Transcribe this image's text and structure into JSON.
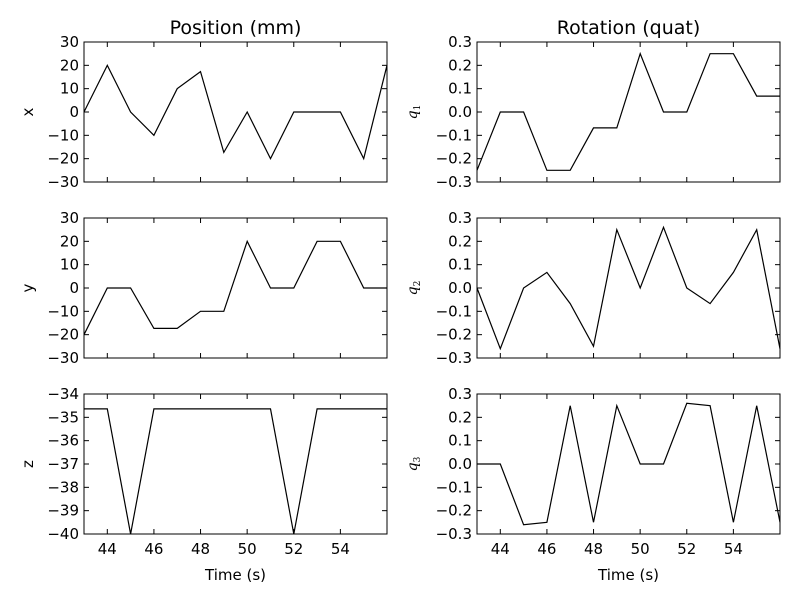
{
  "chart_data": [
    {
      "type": "line",
      "column_title": "Position (mm)",
      "ylabel": "x",
      "xlabel": "",
      "xlim": [
        43,
        56
      ],
      "ylim": [
        -30,
        30
      ],
      "xticks": [
        44,
        46,
        48,
        50,
        52,
        54
      ],
      "yticks": [
        -30,
        -20,
        -10,
        0,
        10,
        20,
        30
      ],
      "x": [
        43,
        44,
        45,
        46,
        47,
        48,
        49,
        50,
        51,
        52,
        53,
        54,
        55,
        56
      ],
      "values": [
        0,
        20,
        0,
        -10,
        10,
        17.3,
        -17.3,
        0,
        -20,
        0,
        0,
        0,
        -20,
        20
      ]
    },
    {
      "type": "line",
      "column_title": "Rotation (quat)",
      "ylabel": "q",
      "ylabel_sub": "1",
      "xlabel": "",
      "xlim": [
        43,
        56
      ],
      "ylim": [
        -0.3,
        0.3
      ],
      "xticks": [
        44,
        46,
        48,
        50,
        52,
        54
      ],
      "yticks": [
        -0.3,
        -0.2,
        -0.1,
        0.0,
        0.1,
        0.2,
        0.3
      ],
      "x": [
        43,
        44,
        45,
        46,
        47,
        48,
        49,
        50,
        51,
        52,
        53,
        54,
        55,
        56
      ],
      "values": [
        -0.25,
        0,
        0,
        -0.25,
        -0.25,
        -0.068,
        -0.068,
        0.25,
        0,
        0,
        0.25,
        0.25,
        0.068,
        0.068
      ]
    },
    {
      "type": "line",
      "column_title": "",
      "ylabel": "y",
      "xlabel": "",
      "xlim": [
        43,
        56
      ],
      "ylim": [
        -30,
        30
      ],
      "xticks": [
        44,
        46,
        48,
        50,
        52,
        54
      ],
      "yticks": [
        -30,
        -20,
        -10,
        0,
        10,
        20,
        30
      ],
      "x": [
        43,
        44,
        45,
        46,
        47,
        48,
        49,
        50,
        51,
        52,
        53,
        54,
        55,
        56
      ],
      "values": [
        -20,
        0,
        0,
        -17.3,
        -17.3,
        -10,
        -10,
        20,
        0,
        0,
        20,
        20,
        0,
        0
      ]
    },
    {
      "type": "line",
      "column_title": "",
      "ylabel": "q",
      "ylabel_sub": "2",
      "xlabel": "",
      "xlim": [
        43,
        56
      ],
      "ylim": [
        -0.3,
        0.3
      ],
      "xticks": [
        44,
        46,
        48,
        50,
        52,
        54
      ],
      "yticks": [
        -0.3,
        -0.2,
        -0.1,
        0.0,
        0.1,
        0.2,
        0.3
      ],
      "x": [
        43,
        44,
        45,
        46,
        47,
        48,
        49,
        50,
        51,
        52,
        53,
        54,
        55,
        56
      ],
      "values": [
        0,
        -0.26,
        0,
        0.067,
        -0.067,
        -0.25,
        0.25,
        0,
        0.26,
        0,
        -0.067,
        0.067,
        0.25,
        -0.26
      ]
    },
    {
      "type": "line",
      "column_title": "",
      "ylabel": "z",
      "xlabel": "Time (s)",
      "xlim": [
        43,
        56
      ],
      "ylim": [
        -40,
        -34
      ],
      "xticks": [
        44,
        46,
        48,
        50,
        52,
        54
      ],
      "yticks": [
        -40,
        -39,
        -38,
        -37,
        -36,
        -35,
        -34
      ],
      "x": [
        43,
        44,
        45,
        46,
        47,
        48,
        49,
        50,
        51,
        52,
        53,
        54,
        55,
        56
      ],
      "values": [
        -34.64,
        -34.64,
        -40,
        -34.64,
        -34.64,
        -34.64,
        -34.64,
        -34.64,
        -34.64,
        -40,
        -34.64,
        -34.64,
        -34.64,
        -34.64
      ]
    },
    {
      "type": "line",
      "column_title": "",
      "ylabel": "q",
      "ylabel_sub": "3",
      "xlabel": "Time (s)",
      "xlim": [
        43,
        56
      ],
      "ylim": [
        -0.3,
        0.3
      ],
      "xticks": [
        44,
        46,
        48,
        50,
        52,
        54
      ],
      "yticks": [
        -0.3,
        -0.2,
        -0.1,
        0.0,
        0.1,
        0.2,
        0.3
      ],
      "x": [
        43,
        44,
        45,
        46,
        47,
        48,
        49,
        50,
        51,
        52,
        53,
        54,
        55,
        56
      ],
      "values": [
        0,
        0,
        -0.26,
        -0.25,
        0.25,
        -0.25,
        0.25,
        0,
        0,
        0.26,
        0.25,
        -0.25,
        0.25,
        -0.25
      ]
    }
  ]
}
